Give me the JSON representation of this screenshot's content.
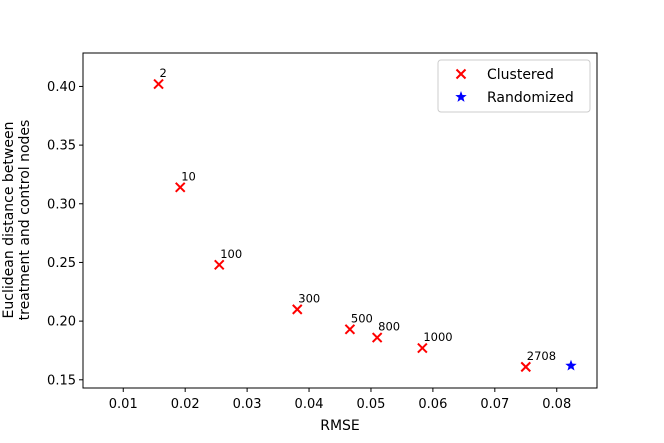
{
  "chart_data": {
    "type": "scatter",
    "title": "",
    "xlabel": "RMSE",
    "ylabel_lines": [
      "Euclidean distance between",
      "treatment and control nodes"
    ],
    "xlim": [
      0.0035,
      0.0865
    ],
    "ylim": [
      0.143,
      0.4285
    ],
    "xticks": [
      0.01,
      0.02,
      0.03,
      0.04,
      0.05,
      0.06,
      0.07,
      0.08
    ],
    "xtick_labels": [
      "0.01",
      "0.02",
      "0.03",
      "0.04",
      "0.05",
      "0.06",
      "0.07",
      "0.08"
    ],
    "yticks": [
      0.15,
      0.2,
      0.25,
      0.3,
      0.35,
      0.4
    ],
    "ytick_labels": [
      "0.15",
      "0.20",
      "0.25",
      "0.30",
      "0.35",
      "0.40"
    ],
    "grid": false,
    "legend_position": "top-right",
    "series": [
      {
        "name": "Clustered",
        "marker": "x",
        "color": "#ff0000",
        "points": [
          {
            "x": 0.0157,
            "y": 0.402,
            "label": "2"
          },
          {
            "x": 0.0192,
            "y": 0.314,
            "label": "10"
          },
          {
            "x": 0.0255,
            "y": 0.248,
            "label": "100"
          },
          {
            "x": 0.0381,
            "y": 0.21,
            "label": "300"
          },
          {
            "x": 0.0466,
            "y": 0.193,
            "label": "500"
          },
          {
            "x": 0.051,
            "y": 0.186,
            "label": "800"
          },
          {
            "x": 0.0583,
            "y": 0.177,
            "label": "1000"
          },
          {
            "x": 0.075,
            "y": 0.161,
            "label": "2708"
          }
        ]
      },
      {
        "name": "Randomized",
        "marker": "star",
        "color": "#0000ff",
        "points": [
          {
            "x": 0.0823,
            "y": 0.162
          }
        ]
      }
    ]
  }
}
